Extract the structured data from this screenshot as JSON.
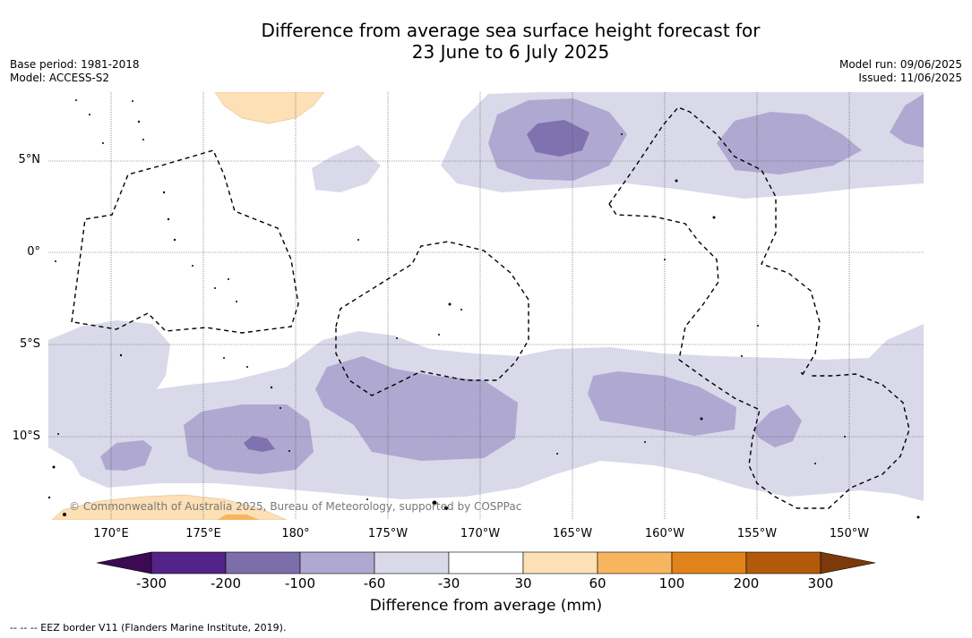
{
  "title": {
    "line1": "Difference from average sea surface height forecast for",
    "line2": "23 June to 6 July 2025"
  },
  "meta_left": {
    "base_period": "Base period: 1981-2018",
    "model": "Model: ACCESS-S2"
  },
  "meta_right": {
    "model_run": "Model run: 09/06/2025",
    "issued": "Issued: 11/06/2025"
  },
  "map": {
    "lat_labels": [
      "5°N",
      "0°",
      "5°S",
      "10°S"
    ],
    "lon_labels": [
      "170°E",
      "175°E",
      "180°",
      "175°W",
      "170°W",
      "165°W",
      "160°W",
      "155°W",
      "150°W"
    ],
    "credit": "© Commonwealth of Australia 2025, Bureau of Meteorology, supported by COSPPac",
    "colors": {
      "neg_30_60": "#d9d9ea",
      "neg_60_100": "#afa8d0",
      "neg_100_200": "#7f72ae",
      "pos_30_60": "#fde0b5",
      "pos_60_100": "#f7b55f"
    }
  },
  "colorbar": {
    "label": "Difference from average (mm)",
    "ticks": [
      "-300",
      "-200",
      "-100",
      "-60",
      "-30",
      "30",
      "60",
      "100",
      "200",
      "300"
    ],
    "colors": [
      "#3c0a52",
      "#542388",
      "#7b6eab",
      "#afa8d0",
      "#d9d9ea",
      "#ffffff",
      "#fde0b5",
      "#f8b55f",
      "#e0831b",
      "#b25a0c",
      "#7c3a0a"
    ]
  },
  "footnote": "-- -- -- EEZ border V11 (Flanders Marine Institute, 2019)."
}
